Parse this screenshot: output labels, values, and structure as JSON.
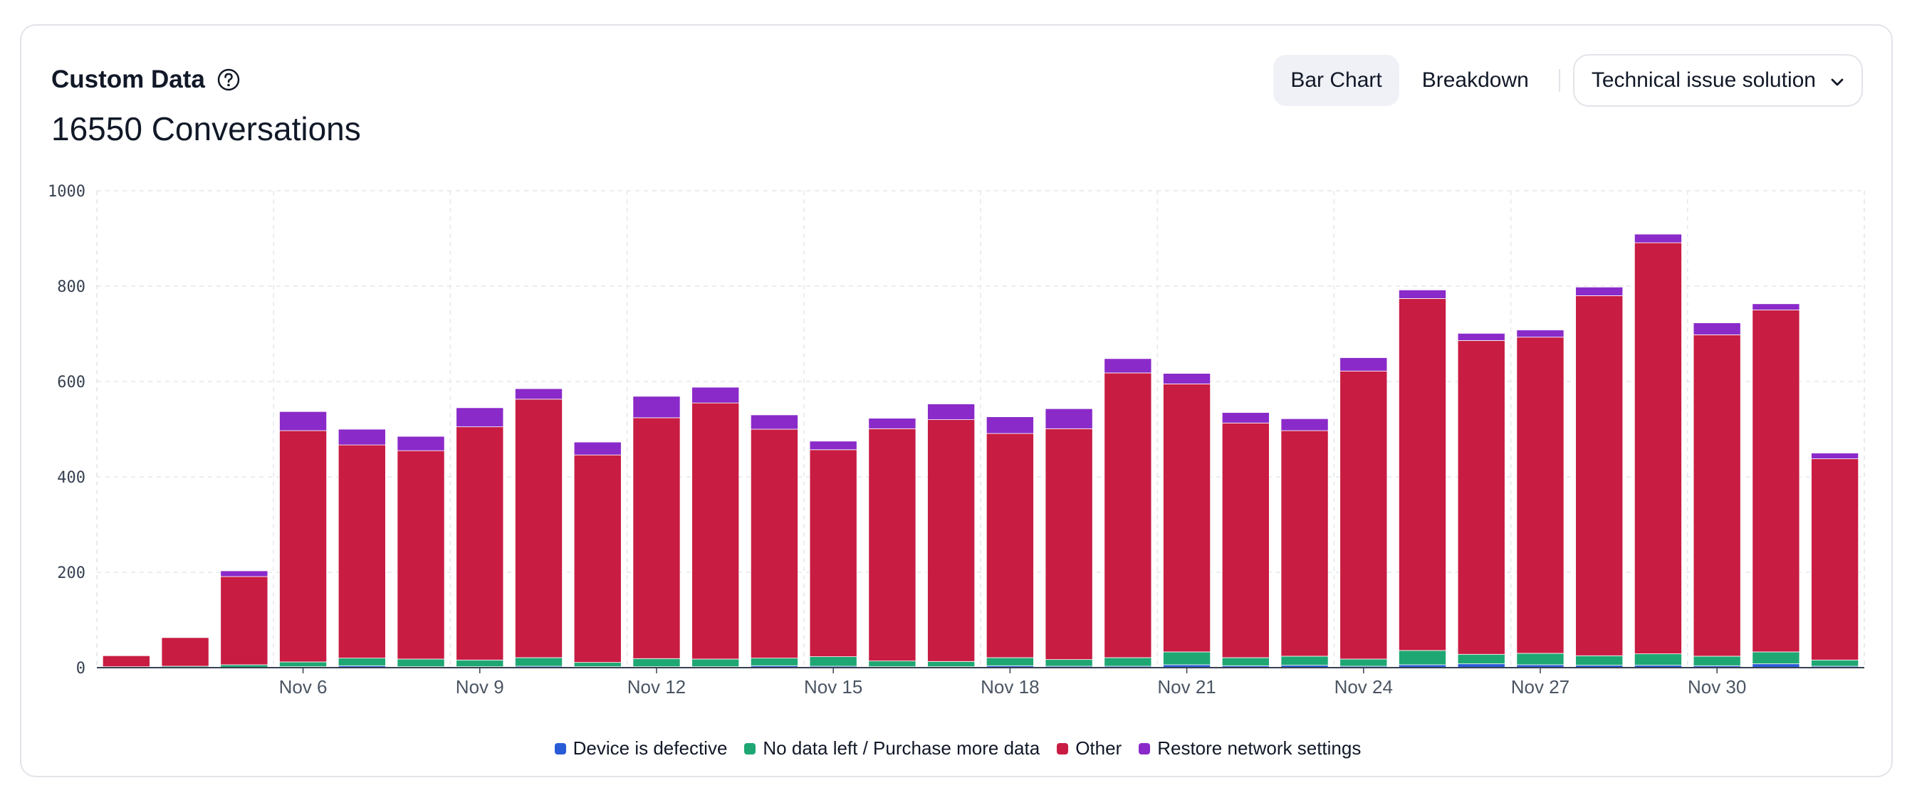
{
  "header": {
    "title": "Custom Data",
    "help_icon": "question-circle-icon",
    "subtitle": "16550 Conversations"
  },
  "controls": {
    "bar_chart_label": "Bar Chart",
    "breakdown_label": "Breakdown",
    "filter_value": "Technical issue solution",
    "filter_icon": "chevron-down-icon"
  },
  "colors": {
    "device_defective": "#2a5bd7",
    "no_data_left": "#1fa773",
    "other": "#c81c42",
    "restore_network": "#8a2ac9"
  },
  "chart_data": {
    "type": "bar",
    "stacked": true,
    "ylim": [
      0,
      1000
    ],
    "yticks": [
      0,
      200,
      400,
      600,
      800,
      1000
    ],
    "grid": true,
    "legend_position": "bottom-center",
    "categories": [
      "Nov 3",
      "Nov 4",
      "Nov 5",
      "Nov 6",
      "Nov 7",
      "Nov 8",
      "Nov 9",
      "Nov 10",
      "Nov 11",
      "Nov 12",
      "Nov 13",
      "Nov 14",
      "Nov 15",
      "Nov 16",
      "Nov 17",
      "Nov 18",
      "Nov 19",
      "Nov 20",
      "Nov 21",
      "Nov 22",
      "Nov 23",
      "Nov 24",
      "Nov 25",
      "Nov 26",
      "Nov 27",
      "Nov 28",
      "Nov 29",
      "Nov 30",
      "Dec 1",
      "Dec 2"
    ],
    "x_tick_labels": [
      "Nov 6",
      "Nov 9",
      "Nov 12",
      "Nov 15",
      "Nov 18",
      "Nov 21",
      "Nov 24",
      "Nov 27",
      "Nov 30"
    ],
    "series": [
      {
        "name": "Device is defective",
        "values": [
          0,
          0,
          0,
          2,
          4,
          2,
          2,
          3,
          2,
          2,
          2,
          4,
          3,
          2,
          2,
          4,
          3,
          3,
          6,
          4,
          5,
          3,
          6,
          8,
          6,
          5,
          5,
          4,
          8,
          3
        ]
      },
      {
        "name": "No data left / Purchase more data",
        "values": [
          2,
          3,
          6,
          10,
          16,
          16,
          14,
          18,
          9,
          17,
          16,
          16,
          20,
          12,
          11,
          17,
          14,
          18,
          27,
          17,
          19,
          15,
          30,
          20,
          24,
          20,
          24,
          20,
          25,
          13
        ]
      },
      {
        "name": "Other",
        "values": [
          23,
          60,
          185,
          485,
          447,
          437,
          489,
          542,
          435,
          505,
          537,
          480,
          434,
          487,
          507,
          470,
          484,
          597,
          562,
          492,
          473,
          604,
          738,
          658,
          663,
          755,
          862,
          674,
          717,
          422
        ]
      },
      {
        "name": "Restore network settings",
        "values": [
          0,
          0,
          12,
          40,
          33,
          30,
          40,
          22,
          27,
          45,
          33,
          30,
          18,
          22,
          33,
          35,
          42,
          30,
          22,
          22,
          25,
          28,
          18,
          15,
          15,
          18,
          18,
          25,
          13,
          12
        ]
      }
    ]
  },
  "legend": [
    {
      "label": "Device is defective",
      "color": "#2a5bd7"
    },
    {
      "label": "No data left / Purchase more data",
      "color": "#1fa773"
    },
    {
      "label": "Other",
      "color": "#c81c42"
    },
    {
      "label": "Restore network settings",
      "color": "#8a2ac9"
    }
  ]
}
